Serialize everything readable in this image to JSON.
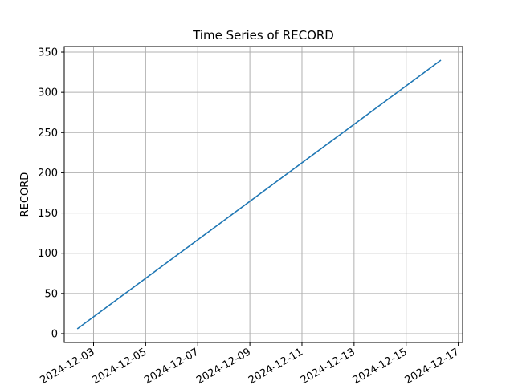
{
  "chart_data": {
    "type": "line",
    "title": "Time Series of RECORD",
    "xlabel": "",
    "ylabel": "RECORD",
    "grid": true,
    "x_axis_type": "date",
    "xlim": [
      "2024-12-01T21:00",
      "2024-12-17T04:00"
    ],
    "ylim": [
      -11,
      357
    ],
    "x_ticks": [
      "2024-12-03",
      "2024-12-05",
      "2024-12-07",
      "2024-12-09",
      "2024-12-11",
      "2024-12-13",
      "2024-12-15",
      "2024-12-17"
    ],
    "y_ticks": [
      0,
      50,
      100,
      150,
      200,
      250,
      300,
      350
    ],
    "series": [
      {
        "color": "#1f77b4",
        "x": [
          "2024-12-02T09:00",
          "2024-12-16T08:00"
        ],
        "y": [
          6,
          340
        ]
      }
    ]
  }
}
